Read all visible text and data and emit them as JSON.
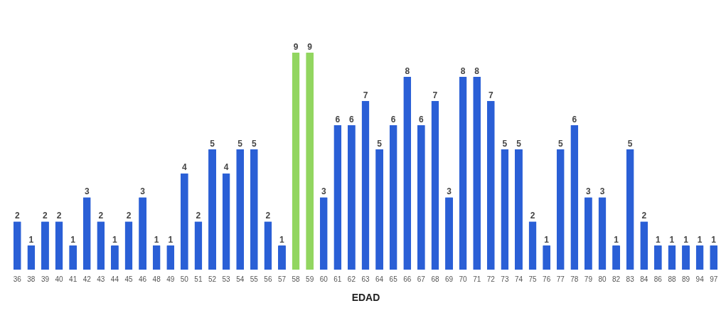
{
  "chart_data": {
    "type": "bar",
    "xlabel": "EDAD",
    "categories": [
      "36",
      "38",
      "39",
      "40",
      "41",
      "42",
      "43",
      "44",
      "45",
      "46",
      "48",
      "49",
      "50",
      "51",
      "52",
      "53",
      "54",
      "55",
      "56",
      "57",
      "58",
      "59",
      "60",
      "61",
      "62",
      "63",
      "64",
      "65",
      "66",
      "67",
      "68",
      "69",
      "70",
      "71",
      "72",
      "73",
      "74",
      "75",
      "76",
      "77",
      "78",
      "79",
      "80",
      "82",
      "83",
      "84",
      "86",
      "88",
      "89",
      "94",
      "97"
    ],
    "values": [
      2,
      1,
      2,
      2,
      1,
      3,
      2,
      1,
      2,
      3,
      1,
      1,
      4,
      2,
      5,
      4,
      5,
      5,
      2,
      1,
      9,
      9,
      3,
      6,
      6,
      7,
      5,
      6,
      8,
      6,
      7,
      3,
      8,
      8,
      7,
      5,
      5,
      2,
      1,
      5,
      6,
      3,
      3,
      1,
      5,
      2,
      1,
      1,
      1,
      1,
      1
    ],
    "colors": [
      "#2a5fd6",
      "#2a5fd6",
      "#2a5fd6",
      "#2a5fd6",
      "#2a5fd6",
      "#2a5fd6",
      "#2a5fd6",
      "#2a5fd6",
      "#2a5fd6",
      "#2a5fd6",
      "#2a5fd6",
      "#2a5fd6",
      "#2a5fd6",
      "#2a5fd6",
      "#2a5fd6",
      "#2a5fd6",
      "#2a5fd6",
      "#2a5fd6",
      "#2a5fd6",
      "#2a5fd6",
      "#92d660",
      "#92d660",
      "#2a5fd6",
      "#2a5fd6",
      "#2a5fd6",
      "#2a5fd6",
      "#2a5fd6",
      "#2a5fd6",
      "#2a5fd6",
      "#2a5fd6",
      "#2a5fd6",
      "#2a5fd6",
      "#2a5fd6",
      "#2a5fd6",
      "#2a5fd6",
      "#2a5fd6",
      "#2a5fd6",
      "#2a5fd6",
      "#2a5fd6",
      "#2a5fd6",
      "#2a5fd6",
      "#2a5fd6",
      "#2a5fd6",
      "#2a5fd6",
      "#2a5fd6",
      "#2a5fd6",
      "#2a5fd6",
      "#2a5fd6",
      "#2a5fd6",
      "#2a5fd6",
      "#2a5fd6"
    ],
    "data_labels": true,
    "tick_labels": "x"
  }
}
